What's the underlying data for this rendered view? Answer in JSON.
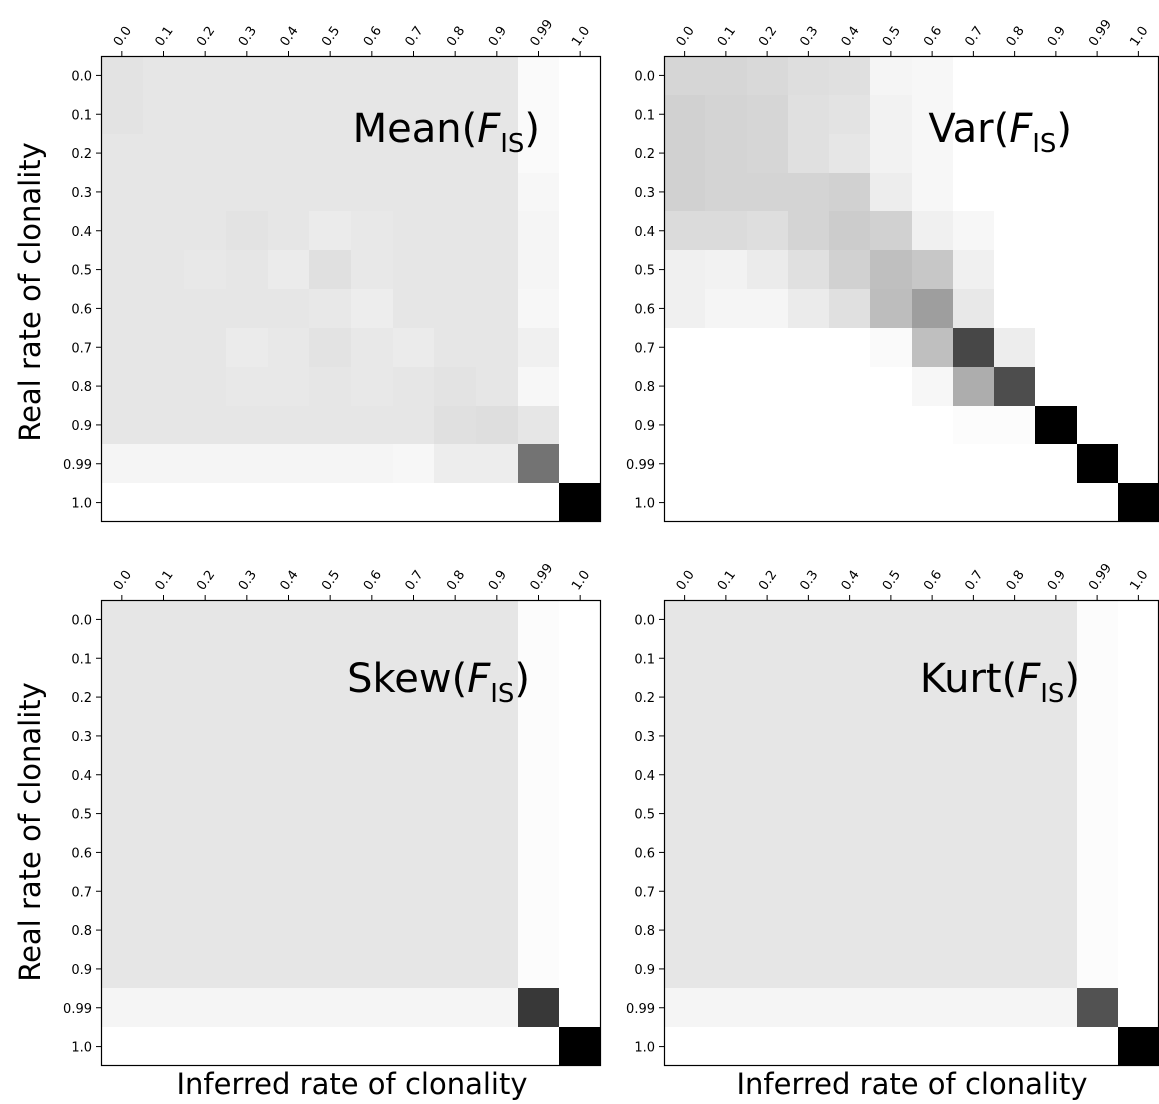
{
  "figure": {
    "ylabel": "Real rate of clonality",
    "xlabel": "Inferred rate of clonality"
  },
  "chart_data": [
    {
      "type": "heatmap",
      "title": {
        "stat": "Mean(",
        "var": "F",
        "sub": "IS",
        "close": ")"
      },
      "xlabel": "Inferred rate of clonality",
      "ylabel": "Real rate of clonality",
      "x_categories": [
        "0.0",
        "0.1",
        "0.2",
        "0.3",
        "0.4",
        "0.5",
        "0.6",
        "0.7",
        "0.8",
        "0.9",
        "0.99",
        "1.0"
      ],
      "y_categories": [
        "0.0",
        "0.1",
        "0.2",
        "0.3",
        "0.4",
        "0.5",
        "0.6",
        "0.7",
        "0.8",
        "0.9",
        "0.99",
        "1.0"
      ],
      "colormap": "grayscale (white = 0, black = 1)",
      "values": [
        [
          0.11,
          0.1,
          0.1,
          0.1,
          0.1,
          0.1,
          0.1,
          0.1,
          0.1,
          0.1,
          0.02,
          0.0
        ],
        [
          0.11,
          0.1,
          0.1,
          0.1,
          0.1,
          0.1,
          0.1,
          0.1,
          0.1,
          0.1,
          0.02,
          0.0
        ],
        [
          0.1,
          0.1,
          0.1,
          0.1,
          0.1,
          0.1,
          0.1,
          0.1,
          0.1,
          0.1,
          0.02,
          0.0
        ],
        [
          0.1,
          0.1,
          0.1,
          0.1,
          0.1,
          0.1,
          0.1,
          0.1,
          0.1,
          0.1,
          0.03,
          0.0
        ],
        [
          0.1,
          0.1,
          0.1,
          0.11,
          0.1,
          0.08,
          0.09,
          0.1,
          0.1,
          0.1,
          0.04,
          0.0
        ],
        [
          0.1,
          0.1,
          0.09,
          0.1,
          0.08,
          0.12,
          0.09,
          0.1,
          0.1,
          0.1,
          0.04,
          0.0
        ],
        [
          0.1,
          0.1,
          0.1,
          0.1,
          0.1,
          0.09,
          0.07,
          0.1,
          0.1,
          0.1,
          0.03,
          0.0
        ],
        [
          0.1,
          0.1,
          0.1,
          0.08,
          0.09,
          0.11,
          0.09,
          0.08,
          0.1,
          0.1,
          0.06,
          0.0
        ],
        [
          0.1,
          0.1,
          0.1,
          0.09,
          0.09,
          0.1,
          0.09,
          0.1,
          0.11,
          0.1,
          0.03,
          0.0
        ],
        [
          0.1,
          0.1,
          0.1,
          0.1,
          0.1,
          0.1,
          0.1,
          0.1,
          0.12,
          0.13,
          0.1,
          0.0
        ],
        [
          0.04,
          0.04,
          0.04,
          0.04,
          0.04,
          0.04,
          0.04,
          0.03,
          0.07,
          0.07,
          0.55,
          0.0
        ],
        [
          0.0,
          0.0,
          0.0,
          0.0,
          0.0,
          0.0,
          0.0,
          0.0,
          0.0,
          0.0,
          0.0,
          1.0
        ]
      ]
    },
    {
      "type": "heatmap",
      "title": {
        "stat": "Var(",
        "var": "F",
        "sub": "IS",
        "close": ")"
      },
      "xlabel": "Inferred rate of clonality",
      "ylabel": "Real rate of clonality",
      "x_categories": [
        "0.0",
        "0.1",
        "0.2",
        "0.3",
        "0.4",
        "0.5",
        "0.6",
        "0.7",
        "0.8",
        "0.9",
        "0.99",
        "1.0"
      ],
      "y_categories": [
        "0.0",
        "0.1",
        "0.2",
        "0.3",
        "0.4",
        "0.5",
        "0.6",
        "0.7",
        "0.8",
        "0.9",
        "0.99",
        "1.0"
      ],
      "colormap": "grayscale (white = 0, black = 1)",
      "values": [
        [
          0.16,
          0.16,
          0.15,
          0.13,
          0.12,
          0.04,
          0.03,
          0.0,
          0.0,
          0.0,
          0.0,
          0.0
        ],
        [
          0.18,
          0.17,
          0.16,
          0.12,
          0.11,
          0.05,
          0.03,
          0.0,
          0.0,
          0.0,
          0.0,
          0.0
        ],
        [
          0.18,
          0.17,
          0.16,
          0.12,
          0.1,
          0.05,
          0.03,
          0.0,
          0.0,
          0.0,
          0.0,
          0.0
        ],
        [
          0.18,
          0.17,
          0.17,
          0.17,
          0.18,
          0.07,
          0.03,
          0.0,
          0.0,
          0.0,
          0.0,
          0.0
        ],
        [
          0.14,
          0.14,
          0.13,
          0.17,
          0.2,
          0.18,
          0.06,
          0.03,
          0.0,
          0.0,
          0.0,
          0.0
        ],
        [
          0.06,
          0.05,
          0.08,
          0.12,
          0.18,
          0.25,
          0.22,
          0.06,
          0.0,
          0.0,
          0.0,
          0.0
        ],
        [
          0.06,
          0.04,
          0.04,
          0.08,
          0.12,
          0.26,
          0.38,
          0.09,
          0.0,
          0.0,
          0.0,
          0.0
        ],
        [
          0.0,
          0.0,
          0.0,
          0.0,
          0.0,
          0.02,
          0.25,
          0.72,
          0.07,
          0.0,
          0.0,
          0.0
        ],
        [
          0.0,
          0.0,
          0.0,
          0.0,
          0.0,
          0.0,
          0.03,
          0.32,
          0.7,
          0.0,
          0.0,
          0.0
        ],
        [
          0.0,
          0.0,
          0.0,
          0.0,
          0.0,
          0.0,
          0.0,
          0.01,
          0.01,
          1.0,
          0.0,
          0.0
        ],
        [
          0.0,
          0.0,
          0.0,
          0.0,
          0.0,
          0.0,
          0.0,
          0.0,
          0.0,
          0.0,
          1.0,
          0.0
        ],
        [
          0.0,
          0.0,
          0.0,
          0.0,
          0.0,
          0.0,
          0.0,
          0.0,
          0.0,
          0.0,
          0.0,
          1.0
        ]
      ]
    },
    {
      "type": "heatmap",
      "title": {
        "stat": "Skew(",
        "var": "F",
        "sub": "IS",
        "close": ")"
      },
      "xlabel": "Inferred rate of clonality",
      "ylabel": "Real rate of clonality",
      "x_categories": [
        "0.0",
        "0.1",
        "0.2",
        "0.3",
        "0.4",
        "0.5",
        "0.6",
        "0.7",
        "0.8",
        "0.9",
        "0.99",
        "1.0"
      ],
      "y_categories": [
        "0.0",
        "0.1",
        "0.2",
        "0.3",
        "0.4",
        "0.5",
        "0.6",
        "0.7",
        "0.8",
        "0.9",
        "0.99",
        "1.0"
      ],
      "colormap": "grayscale (white = 0, black = 1)",
      "values": [
        [
          0.1,
          0.1,
          0.1,
          0.1,
          0.1,
          0.1,
          0.1,
          0.1,
          0.1,
          0.1,
          0.01,
          0.0
        ],
        [
          0.1,
          0.1,
          0.1,
          0.1,
          0.1,
          0.1,
          0.1,
          0.1,
          0.1,
          0.1,
          0.01,
          0.0
        ],
        [
          0.1,
          0.1,
          0.1,
          0.1,
          0.1,
          0.1,
          0.1,
          0.1,
          0.1,
          0.1,
          0.01,
          0.0
        ],
        [
          0.1,
          0.1,
          0.1,
          0.1,
          0.1,
          0.1,
          0.1,
          0.1,
          0.1,
          0.1,
          0.01,
          0.0
        ],
        [
          0.1,
          0.1,
          0.1,
          0.1,
          0.1,
          0.1,
          0.1,
          0.1,
          0.1,
          0.1,
          0.01,
          0.0
        ],
        [
          0.1,
          0.1,
          0.1,
          0.1,
          0.1,
          0.1,
          0.1,
          0.1,
          0.1,
          0.1,
          0.01,
          0.0
        ],
        [
          0.1,
          0.1,
          0.1,
          0.1,
          0.1,
          0.1,
          0.1,
          0.1,
          0.1,
          0.1,
          0.01,
          0.0
        ],
        [
          0.1,
          0.1,
          0.1,
          0.1,
          0.1,
          0.1,
          0.1,
          0.1,
          0.1,
          0.1,
          0.01,
          0.0
        ],
        [
          0.1,
          0.1,
          0.1,
          0.1,
          0.1,
          0.1,
          0.1,
          0.1,
          0.1,
          0.1,
          0.01,
          0.0
        ],
        [
          0.1,
          0.1,
          0.1,
          0.1,
          0.1,
          0.1,
          0.1,
          0.1,
          0.1,
          0.1,
          0.01,
          0.0
        ],
        [
          0.04,
          0.04,
          0.04,
          0.04,
          0.04,
          0.04,
          0.04,
          0.04,
          0.04,
          0.04,
          0.78,
          0.0
        ],
        [
          0.0,
          0.0,
          0.0,
          0.0,
          0.0,
          0.0,
          0.0,
          0.0,
          0.0,
          0.0,
          0.0,
          1.0
        ]
      ]
    },
    {
      "type": "heatmap",
      "title": {
        "stat": "Kurt(",
        "var": "F",
        "sub": "IS",
        "close": ")"
      },
      "xlabel": "Inferred rate of clonality",
      "ylabel": "Real rate of clonality",
      "x_categories": [
        "0.0",
        "0.1",
        "0.2",
        "0.3",
        "0.4",
        "0.5",
        "0.6",
        "0.7",
        "0.8",
        "0.9",
        "0.99",
        "1.0"
      ],
      "y_categories": [
        "0.0",
        "0.1",
        "0.2",
        "0.3",
        "0.4",
        "0.5",
        "0.6",
        "0.7",
        "0.8",
        "0.9",
        "0.99",
        "1.0"
      ],
      "colormap": "grayscale (white = 0, black = 1)",
      "values": [
        [
          0.1,
          0.1,
          0.1,
          0.1,
          0.1,
          0.1,
          0.1,
          0.1,
          0.1,
          0.1,
          0.01,
          0.0
        ],
        [
          0.1,
          0.1,
          0.1,
          0.1,
          0.1,
          0.1,
          0.1,
          0.1,
          0.1,
          0.1,
          0.01,
          0.0
        ],
        [
          0.1,
          0.1,
          0.1,
          0.1,
          0.1,
          0.1,
          0.1,
          0.1,
          0.1,
          0.1,
          0.01,
          0.0
        ],
        [
          0.1,
          0.1,
          0.1,
          0.1,
          0.1,
          0.1,
          0.1,
          0.1,
          0.1,
          0.1,
          0.01,
          0.0
        ],
        [
          0.1,
          0.1,
          0.1,
          0.1,
          0.1,
          0.1,
          0.1,
          0.1,
          0.1,
          0.1,
          0.01,
          0.0
        ],
        [
          0.1,
          0.1,
          0.1,
          0.1,
          0.1,
          0.1,
          0.1,
          0.1,
          0.1,
          0.1,
          0.01,
          0.0
        ],
        [
          0.1,
          0.1,
          0.1,
          0.1,
          0.1,
          0.1,
          0.1,
          0.1,
          0.1,
          0.1,
          0.01,
          0.0
        ],
        [
          0.1,
          0.1,
          0.1,
          0.1,
          0.1,
          0.1,
          0.1,
          0.1,
          0.1,
          0.1,
          0.01,
          0.0
        ],
        [
          0.1,
          0.1,
          0.1,
          0.1,
          0.1,
          0.1,
          0.1,
          0.1,
          0.1,
          0.1,
          0.01,
          0.0
        ],
        [
          0.1,
          0.1,
          0.1,
          0.1,
          0.1,
          0.1,
          0.1,
          0.1,
          0.1,
          0.1,
          0.01,
          0.0
        ],
        [
          0.04,
          0.04,
          0.04,
          0.04,
          0.04,
          0.04,
          0.04,
          0.04,
          0.04,
          0.04,
          0.68,
          0.0
        ],
        [
          0.0,
          0.0,
          0.0,
          0.0,
          0.0,
          0.0,
          0.0,
          0.0,
          0.0,
          0.0,
          0.0,
          1.0
        ]
      ]
    }
  ]
}
